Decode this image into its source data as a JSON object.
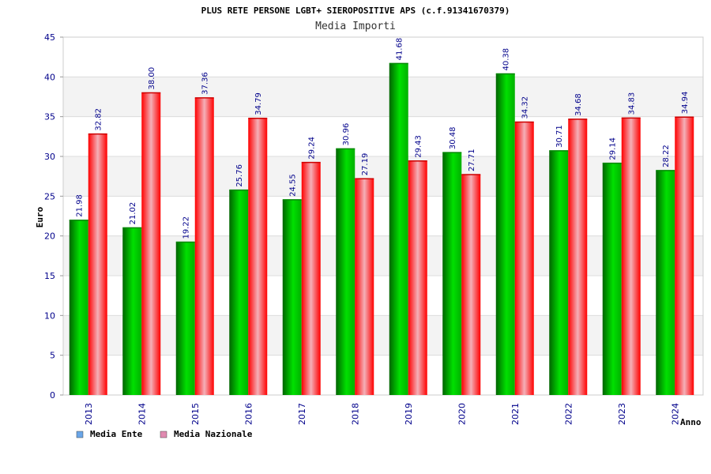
{
  "chart_data": {
    "type": "bar",
    "title": "PLUS RETE PERSONE LGBT+ SIEROPOSITIVE APS (c.f.91341670379)",
    "subtitle": "Media Importi",
    "xlabel": "Anno",
    "ylabel": "Euro",
    "ylim": [
      0,
      45
    ],
    "yticks": [
      0,
      5,
      10,
      15,
      20,
      25,
      30,
      35,
      40,
      45
    ],
    "grid": true,
    "legend_position": "bottom-left",
    "categories": [
      "2013",
      "2014",
      "2015",
      "2016",
      "2017",
      "2018",
      "2019",
      "2020",
      "2021",
      "2022",
      "2023",
      "2024"
    ],
    "series": [
      {
        "name": "Media Ente",
        "color": "#00c000",
        "legend_color": "#6aa6e8",
        "values": [
          21.98,
          21.02,
          19.22,
          25.76,
          24.55,
          30.96,
          41.68,
          30.48,
          40.38,
          30.71,
          29.14,
          28.22
        ],
        "labels": [
          "21.98",
          "21.02",
          "19.22",
          "25.76",
          "24.55",
          "30.96",
          "41.68",
          "30.48",
          "40.38",
          "30.71",
          "29.14",
          "28.22"
        ]
      },
      {
        "name": "Media Nazionale",
        "color": "#ff0000",
        "legend_color": "#e08ab0",
        "values": [
          32.82,
          38.0,
          37.36,
          34.79,
          29.24,
          27.19,
          29.43,
          27.71,
          34.32,
          34.68,
          34.83,
          34.94
        ],
        "labels": [
          "32.82",
          "38.00",
          "37.36",
          "34.79",
          "29.24",
          "27.19",
          "29.43",
          "27.71",
          "34.32",
          "34.68",
          "34.83",
          "34.94"
        ]
      }
    ]
  }
}
